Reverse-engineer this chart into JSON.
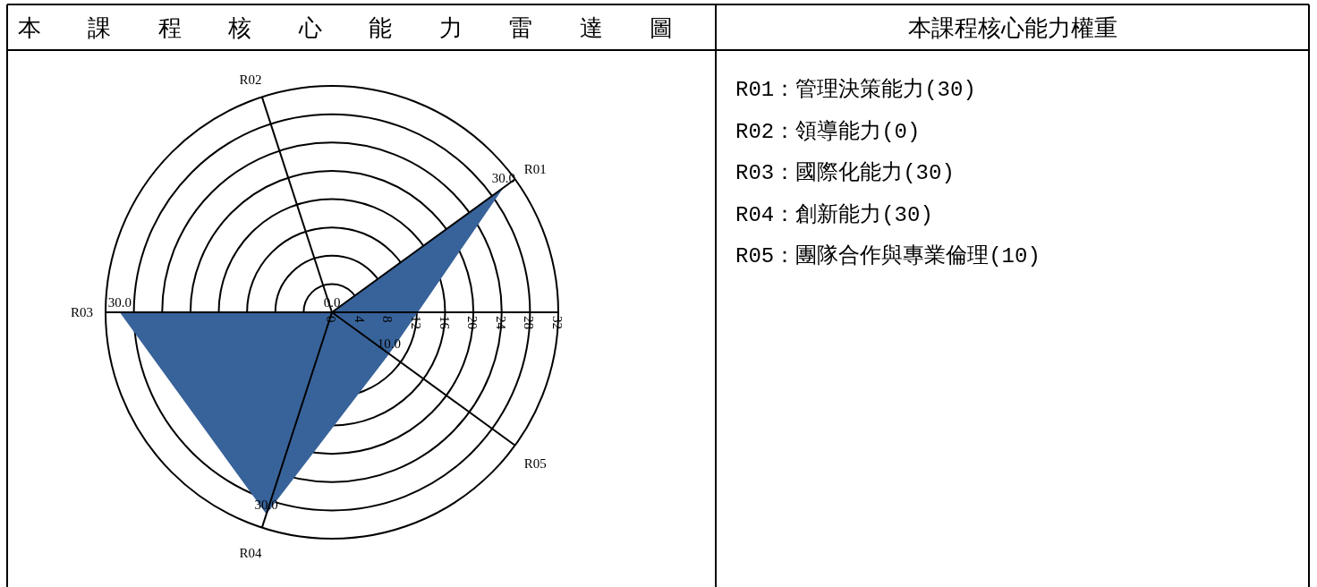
{
  "chart_data": [
    {
      "type": "radar",
      "title": "本課程核心能力雷達圖",
      "categories": [
        "R02",
        "R01",
        "R05",
        "R04",
        "R03"
      ],
      "series": [
        {
          "color": "#38639a",
          "values": [
            0,
            30,
            10,
            30,
            30
          ],
          "value_labels": [
            "0.0",
            "30.0",
            "10.0",
            "30.0",
            "30.0"
          ]
        }
      ],
      "ylim": [
        0,
        32
      ],
      "yticks": [
        0,
        4,
        8,
        12,
        16,
        20,
        24,
        28,
        32
      ],
      "grid": true
    },
    {
      "type": "other",
      "title": "本課程核心能力權重",
      "annotations": [
        "R01：管理決策能力(30)",
        "R02：領導能力(0)",
        "R03：國際化能力(30)",
        "R04：創新能力(30)",
        "R05：團隊合作與專業倫理(10)"
      ]
    }
  ]
}
